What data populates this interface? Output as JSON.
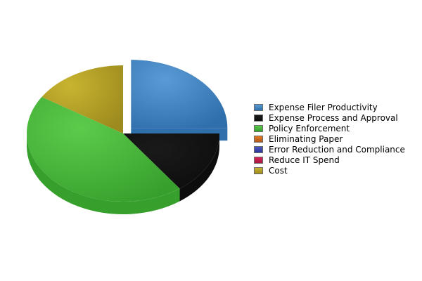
{
  "chart_data": {
    "type": "pie",
    "style": "3d-exploded",
    "title": "",
    "categories": [
      "Expense Filer Productivity",
      "Expense Process and Approval",
      "Policy Enforcement",
      "Eliminating Paper",
      "Error Reduction and Compliance",
      "Reduce IT Spend",
      "Cost"
    ],
    "values": [
      25,
      15,
      44,
      0,
      0,
      0,
      16
    ],
    "exploded": [
      true,
      false,
      false,
      false,
      false,
      false,
      false
    ],
    "colors": [
      "#5b9bd5",
      "#1a1a1a",
      "#5ccb4c",
      "#e07b27",
      "#4a56c8",
      "#d8245a",
      "#c9b430"
    ],
    "side_colors": [
      "#2f6fab",
      "#0d0d0d",
      "#37a02c",
      "#b0581a",
      "#2e3896",
      "#a81840",
      "#9c8a1e"
    ],
    "legend_position": "right"
  }
}
